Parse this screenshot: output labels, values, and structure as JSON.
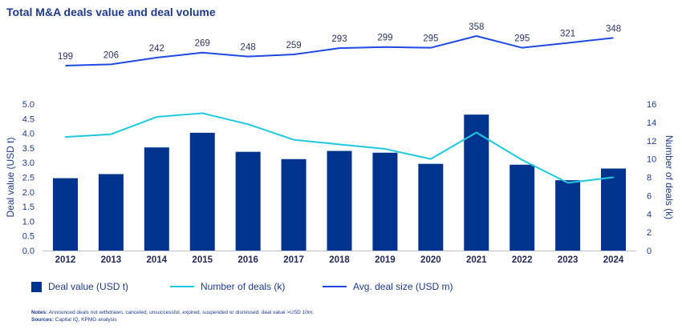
{
  "chart_data": {
    "type": "bar",
    "title": "Total M&A deals value and deal volume",
    "categories": [
      "2012",
      "2013",
      "2014",
      "2015",
      "2016",
      "2017",
      "2018",
      "2019",
      "2020",
      "2021",
      "2022",
      "2023",
      "2024"
    ],
    "series": [
      {
        "name": "Deal value (USD t)",
        "type": "bar",
        "axis": "left",
        "values": [
          2.47,
          2.61,
          3.52,
          4.02,
          3.37,
          3.12,
          3.4,
          3.34,
          2.96,
          4.64,
          2.93,
          2.4,
          2.8
        ]
      },
      {
        "name": "Number of deals (k)",
        "type": "line",
        "axis": "right",
        "values": [
          12.4,
          12.7,
          14.6,
          15.0,
          13.8,
          12.1,
          11.6,
          11.1,
          10.0,
          12.9,
          9.9,
          7.4,
          8.0
        ]
      },
      {
        "name": "Avg. deal size (USD m)",
        "type": "line",
        "axis": "top",
        "values": [
          199,
          206,
          242,
          269,
          248,
          259,
          293,
          299,
          295,
          358,
          295,
          321,
          348
        ]
      }
    ],
    "ylabel_left": "Deal value (USD t)",
    "ylabel_right": "Number of deals (k)",
    "ylim_left": [
      0,
      5.0
    ],
    "ylim_right": [
      0,
      16
    ],
    "yticks_left": [
      "0.0",
      "0.5",
      "1.0",
      "1.5",
      "2.0",
      "2.5",
      "3.0",
      "3.5",
      "4.0",
      "4.5",
      "5.0"
    ],
    "yticks_right": [
      "0",
      "2",
      "4",
      "6",
      "8",
      "10",
      "12",
      "14",
      "16"
    ],
    "grid": false,
    "legend_position": "bottom",
    "colors": {
      "bar": "#00338D",
      "deals_line": "#1EC8E0",
      "avg_line": "#1E49E2",
      "text": "#1E3A8A"
    }
  },
  "notes": {
    "notes_label": "Notes:",
    "notes_text": " Announced deals not withdrawn, canceled, unsuccessful, expired, suspended or dismissed; deal value >USD 10m.",
    "sources_label": "Sources:",
    "sources_text": " Capital IQ, KPMG analysis"
  }
}
